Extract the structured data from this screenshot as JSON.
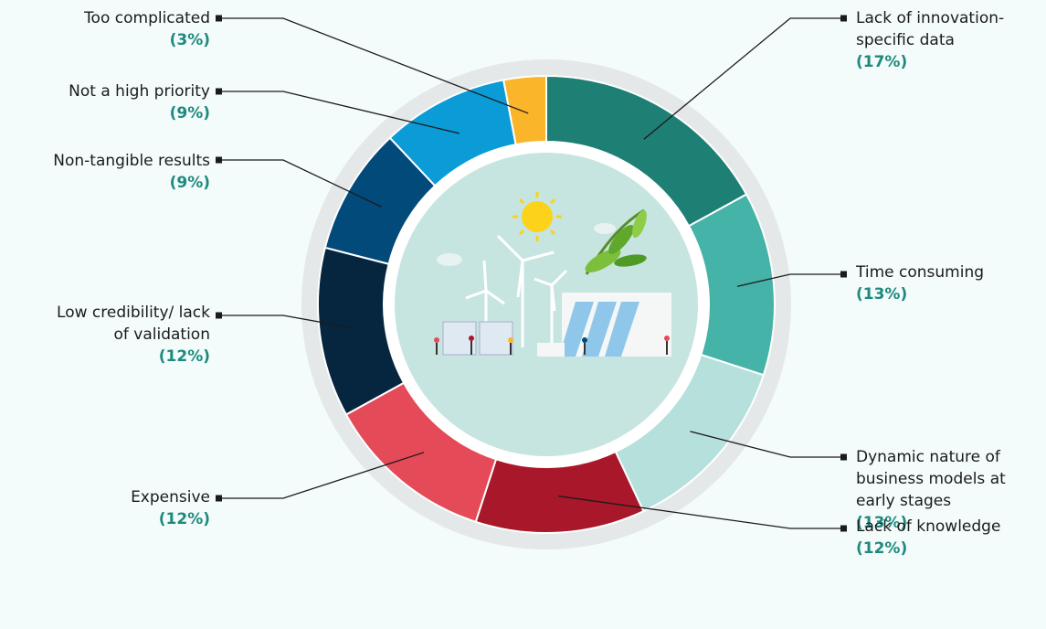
{
  "chart_data": {
    "type": "donut",
    "categories": [
      "Lack of innovation-specific data",
      "Time consuming",
      "Dynamic nature of business models at early stages",
      "Lack of knowledge",
      "Expensive",
      "Low credibility/ lack of validation",
      "Non-tangible results",
      "Not a high priority",
      "Too complicated"
    ],
    "values": [
      17,
      13,
      13,
      12,
      12,
      12,
      9,
      9,
      3
    ],
    "value_labels": [
      "(17%)",
      "(13%)",
      "(13%)",
      "(12%)",
      "(12%)",
      "(12%)",
      "(9%)",
      "(9%)",
      "(3%)"
    ],
    "colors": [
      "#1e7f74",
      "#46b3a8",
      "#b5e0db",
      "#a8182a",
      "#e44a58",
      "#062640",
      "#024a7a",
      "#0b9bd7",
      "#fbb52b"
    ]
  }
}
